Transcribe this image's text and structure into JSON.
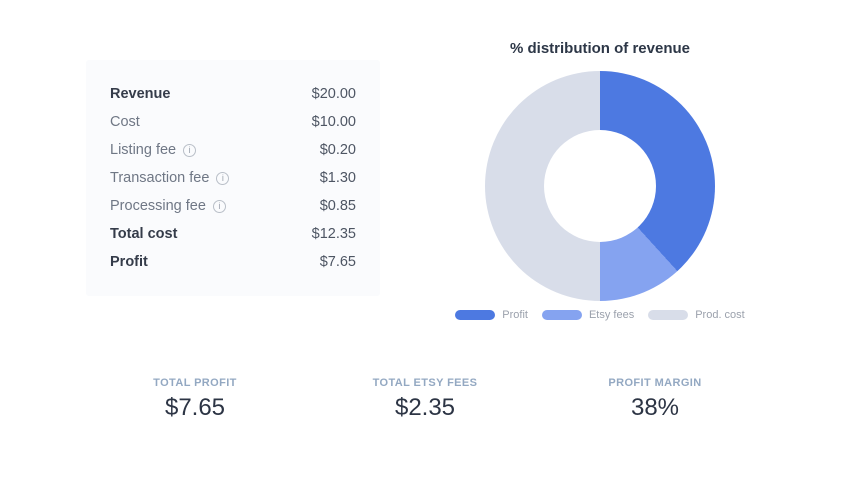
{
  "summary_table": {
    "info_icon_glyph": "i",
    "rows": [
      {
        "label": "Revenue",
        "value": "$20.00",
        "emphasis": true,
        "has_info": false
      },
      {
        "label": "Cost",
        "value": "$10.00",
        "emphasis": false,
        "has_info": false
      },
      {
        "label": "Listing fee",
        "value": "$0.20",
        "emphasis": false,
        "has_info": true
      },
      {
        "label": "Transaction fee",
        "value": "$1.30",
        "emphasis": false,
        "has_info": true
      },
      {
        "label": "Processing fee",
        "value": "$0.85",
        "emphasis": false,
        "has_info": true
      },
      {
        "label": "Total cost",
        "value": "$12.35",
        "emphasis": true,
        "has_info": false
      },
      {
        "label": "Profit",
        "value": "$7.65",
        "emphasis": true,
        "has_info": false
      }
    ]
  },
  "chart_data": {
    "type": "pie",
    "subtype": "donut",
    "title": "% distribution of revenue",
    "labels": [
      "Profit",
      "Etsy fees",
      "Prod. cost"
    ],
    "values": [
      38.25,
      11.75,
      50
    ],
    "values_currency": [
      7.65,
      2.35,
      10.0
    ],
    "total_revenue": 20.0,
    "colors": [
      "#4d79e1",
      "#85a3f0",
      "#d8dde9"
    ],
    "inner_radius_ratio": 0.49,
    "start_angle": "top",
    "direction": "clockwise",
    "legend_position": "bottom"
  },
  "legend": {
    "entries": [
      {
        "label": "Profit",
        "color": "#4d79e1"
      },
      {
        "label": "Etsy fees",
        "color": "#85a3f0"
      },
      {
        "label": "Prod. cost",
        "color": "#d8dde9"
      }
    ]
  },
  "stats": [
    {
      "label": "TOTAL PROFIT",
      "value": "$7.65"
    },
    {
      "label": "TOTAL ETSY FEES",
      "value": "$2.35"
    },
    {
      "label": "PROFIT MARGIN",
      "value": "38%"
    }
  ]
}
